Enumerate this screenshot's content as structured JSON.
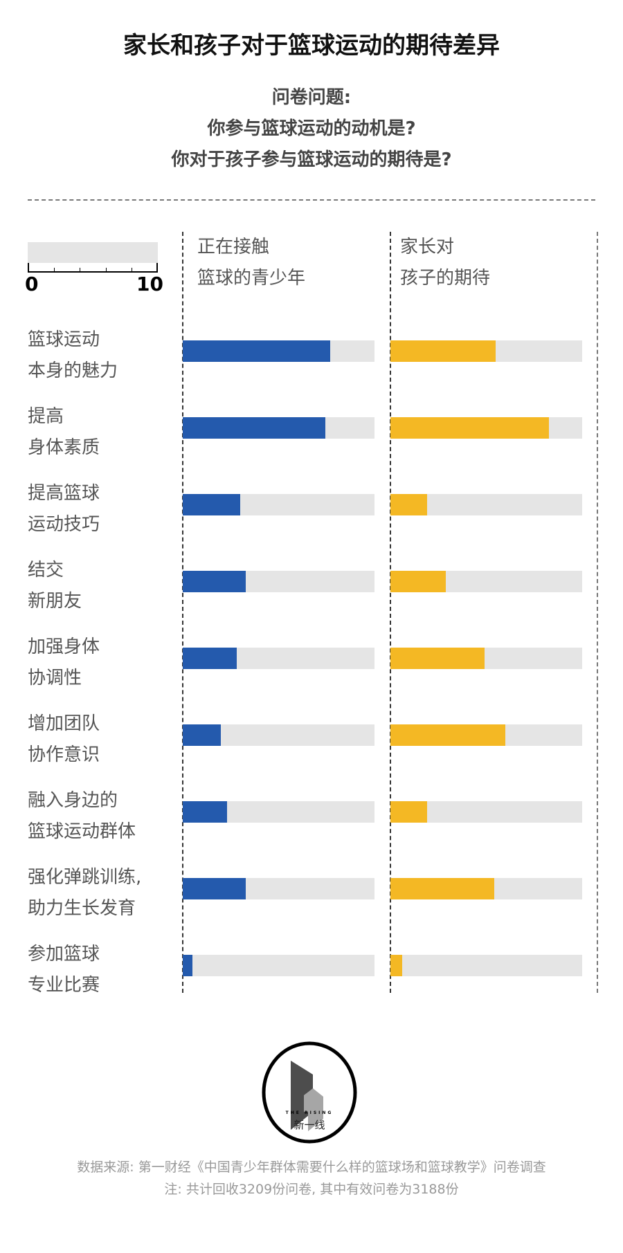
{
  "title": "家长和孩子对于篮球运动的期待差异",
  "subtitle": [
    "问卷问题:",
    "你参与篮球运动的动机是?",
    "你对于孩子参与篮球运动的期待是?"
  ],
  "legend_scale": {
    "min_label": "0",
    "max_label": "10"
  },
  "chart_data": {
    "type": "bar",
    "orientation": "horizontal",
    "xlim": [
      0,
      10
    ],
    "categories": [
      [
        "篮球运动",
        "本身的魅力"
      ],
      [
        "提高",
        "身体素质"
      ],
      [
        "提高篮球",
        "运动技巧"
      ],
      [
        "结交",
        "新朋友"
      ],
      [
        "加强身体",
        "协调性"
      ],
      [
        "增加团队",
        "协作意识"
      ],
      [
        "融入身边的",
        "篮球运动群体"
      ],
      [
        "强化弹跳训练,",
        "助力生长发育"
      ],
      [
        "参加篮球",
        "专业比赛"
      ]
    ],
    "series": [
      {
        "name": [
          "正在接触",
          "篮球的青少年"
        ],
        "color": "#245AAD",
        "values": [
          7.7,
          7.45,
          3.0,
          3.3,
          2.8,
          2.0,
          2.3,
          3.3,
          0.5
        ]
      },
      {
        "name": [
          "家长对",
          "孩子的期待"
        ],
        "color": "#F4B824",
        "values": [
          5.5,
          8.25,
          1.9,
          2.9,
          4.9,
          6.0,
          1.9,
          5.4,
          0.6
        ]
      }
    ],
    "track_color": "#E5E5E5"
  },
  "logo": {
    "text_en": "THE RISING",
    "text_cn": "新一线"
  },
  "footer": {
    "source": "数据来源: 第一财经《中国青少年群体需要什么样的篮球场和篮球教学》问卷调查",
    "note": "注: 共计回收3209份问卷, 其中有效问卷为3188份"
  }
}
